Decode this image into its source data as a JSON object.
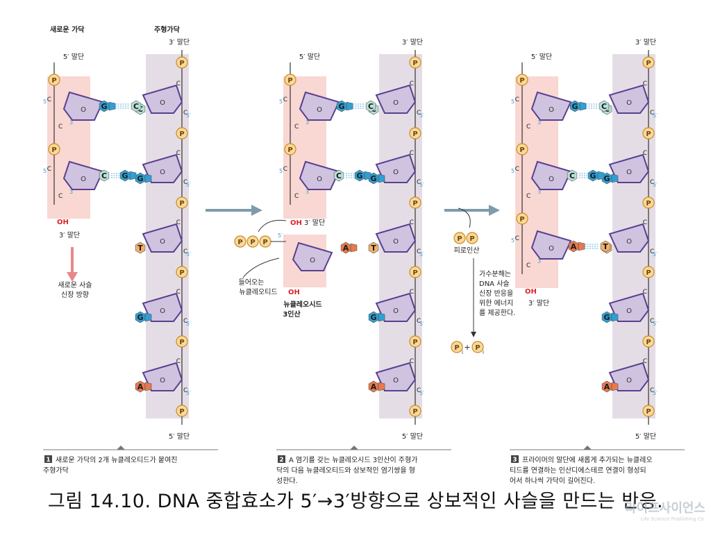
{
  "labels": {
    "new_strand": "새로운 가닥",
    "template_strand": "주형가닥",
    "five_end": "5′ 말단",
    "three_end": "3′ 말단",
    "oh": "OH",
    "growth_direction": [
      "새로운 사슬",
      "신장 방향"
    ],
    "incoming": [
      "들어오는",
      "뉴클레오티드"
    ],
    "nucleoside_triphosphate": [
      "뉴클레오시드",
      "3인산"
    ],
    "pyrophosphate": "피로인산",
    "hydrolysis": [
      "가수분해는",
      "DNA 사슬",
      "신장 반응을",
      "위한 에너지",
      "를 제공한다."
    ],
    "pi": "P",
    "pi_sub": "i",
    "plus": "+",
    "phosphate": "P",
    "carbon": "C",
    "prime5": "5′",
    "prime3": "3′",
    "oxygen": "O"
  },
  "panels": [
    {
      "number": "1",
      "caption": [
        "새로운 가닥의 2개 뉴클레오티드가 붙여진",
        "주형가닥"
      ]
    },
    {
      "number": "2",
      "caption": [
        "A 염기를 갖는 뉴클레오시드 3인산이 주형가",
        "닥의 다음 뉴클레오티드와 상보적인 염기쌍을 형",
        "성한다."
      ]
    },
    {
      "number": "3",
      "caption": [
        "프라이머의 말단에 새롭게 추가되는 뉴클레오",
        "티드를 연결하는 인산디에스테르 연결이 형성되",
        "어서 하나씩 가닥이 길어진다."
      ]
    }
  ],
  "template_bases": [
    "C",
    "G",
    "T",
    "G",
    "A"
  ],
  "new_bases": [
    "G",
    "C"
  ],
  "incoming_base": "A",
  "colors": {
    "highlight_new": "#f9d7d2",
    "highlight_template": "#e4dde6",
    "sugar_fill": "#cfc3e0",
    "sugar_stroke": "#5a3f8f",
    "phosphate_fill": "#fbd89a",
    "phosphate_stroke": "#c98a1e",
    "base_G": "#2f9fd4",
    "base_C": "#b8e1d8",
    "base_T": "#f3b16b",
    "base_A": "#e8794c",
    "arrow": "#7f9bab",
    "oh": "#d9242b",
    "growth_arrow": "#e8888a",
    "prime_label": "#3aa0d8"
  },
  "figure_caption": "그림 14.10. DNA 중합효소가 5′→3′방향으로 상보적인 사슬을 만드는 반응.",
  "watermark": {
    "title": "라이프사이언스",
    "subtitle": "Life Science Publishing Co."
  }
}
